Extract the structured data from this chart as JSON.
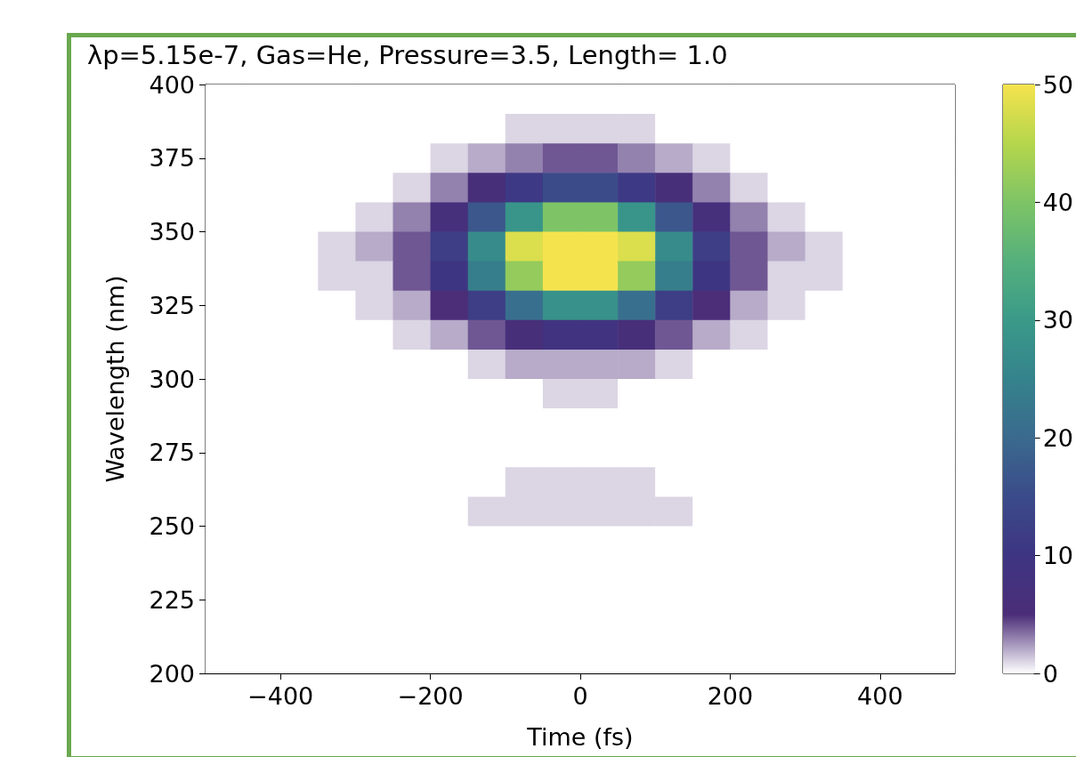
{
  "chart_data": {
    "type": "heatmap",
    "title": "λp=5.15e-7, Gas=He, Pressure=3.5, Length= 1.0",
    "xlabel": "Time (fs)",
    "ylabel": "Wavelength (nm)",
    "x": [
      -475,
      -425,
      -375,
      -325,
      -275,
      -225,
      -175,
      -125,
      -75,
      -25,
      25,
      75,
      125,
      175,
      225,
      275,
      325,
      375,
      425,
      475
    ],
    "y": [
      395,
      385,
      375,
      365,
      355,
      345,
      335,
      325,
      315,
      305,
      295,
      285,
      275,
      265,
      255,
      245,
      235,
      225,
      215,
      205
    ],
    "cells": [
      [
        0,
        0,
        0,
        0,
        0,
        0,
        0,
        0,
        0,
        0,
        0,
        0,
        0,
        0,
        0,
        0,
        0,
        0,
        0,
        0
      ],
      [
        0,
        0,
        0,
        0,
        0,
        0,
        0,
        0,
        1,
        1,
        1,
        1,
        0,
        0,
        0,
        0,
        0,
        0,
        0,
        0
      ],
      [
        0,
        0,
        0,
        0,
        0,
        0,
        1,
        2,
        3,
        4,
        4,
        3,
        2,
        1,
        0,
        0,
        0,
        0,
        0,
        0
      ],
      [
        0,
        0,
        0,
        0,
        0,
        1,
        3,
        6,
        11,
        15,
        15,
        11,
        6,
        3,
        1,
        0,
        0,
        0,
        0,
        0
      ],
      [
        0,
        0,
        0,
        0,
        1,
        3,
        7,
        17,
        29,
        40,
        40,
        29,
        17,
        7,
        3,
        1,
        0,
        0,
        0,
        0
      ],
      [
        0,
        0,
        0,
        1,
        2,
        4,
        12,
        27,
        48,
        50,
        50,
        48,
        27,
        12,
        4,
        2,
        1,
        0,
        0,
        0
      ],
      [
        0,
        0,
        0,
        1,
        1,
        4,
        10,
        24,
        42,
        50,
        50,
        42,
        24,
        10,
        4,
        1,
        1,
        0,
        0,
        0
      ],
      [
        0,
        0,
        0,
        0,
        1,
        2,
        5,
        12,
        21,
        28,
        28,
        21,
        12,
        5,
        2,
        1,
        0,
        0,
        0,
        0
      ],
      [
        0,
        0,
        0,
        0,
        0,
        1,
        2,
        4,
        6,
        9,
        9,
        6,
        4,
        2,
        1,
        0,
        0,
        0,
        0,
        0
      ],
      [
        0,
        0,
        0,
        0,
        0,
        0,
        0,
        1,
        2,
        2,
        2,
        2,
        1,
        0,
        0,
        0,
        0,
        0,
        0,
        0
      ],
      [
        0,
        0,
        0,
        0,
        0,
        0,
        0,
        0,
        0,
        1,
        1,
        0,
        0,
        0,
        0,
        0,
        0,
        0,
        0,
        0
      ],
      [
        0,
        0,
        0,
        0,
        0,
        0,
        0,
        0,
        0,
        0,
        0,
        0,
        0,
        0,
        0,
        0,
        0,
        0,
        0,
        0
      ],
      [
        0,
        0,
        0,
        0,
        0,
        0,
        0,
        0,
        0,
        0,
        0,
        0,
        0,
        0,
        0,
        0,
        0,
        0,
        0,
        0
      ],
      [
        0,
        0,
        0,
        0,
        0,
        0,
        0,
        0,
        1,
        1,
        1,
        1,
        0,
        0,
        0,
        0,
        0,
        0,
        0,
        0
      ],
      [
        0,
        0,
        0,
        0,
        0,
        0,
        0,
        1,
        1,
        1,
        1,
        1,
        1,
        0,
        0,
        0,
        0,
        0,
        0,
        0
      ],
      [
        0,
        0,
        0,
        0,
        0,
        0,
        0,
        0,
        0,
        0,
        0,
        0,
        0,
        0,
        0,
        0,
        0,
        0,
        0,
        0
      ],
      [
        0,
        0,
        0,
        0,
        0,
        0,
        0,
        0,
        0,
        0,
        0,
        0,
        0,
        0,
        0,
        0,
        0,
        0,
        0,
        0
      ],
      [
        0,
        0,
        0,
        0,
        0,
        0,
        0,
        0,
        0,
        0,
        0,
        0,
        0,
        0,
        0,
        0,
        0,
        0,
        0,
        0
      ],
      [
        0,
        0,
        0,
        0,
        0,
        0,
        0,
        0,
        0,
        0,
        0,
        0,
        0,
        0,
        0,
        0,
        0,
        0,
        0,
        0
      ],
      [
        0,
        0,
        0,
        0,
        0,
        0,
        0,
        0,
        0,
        0,
        0,
        0,
        0,
        0,
        0,
        0,
        0,
        0,
        0,
        0
      ]
    ],
    "xlim": [
      -500,
      500
    ],
    "xticks": [
      {
        "value": -400,
        "label": "−400"
      },
      {
        "value": -200,
        "label": "−200"
      },
      0,
      200,
      400
    ],
    "ylim": [
      200,
      400
    ],
    "yticks": [
      200,
      225,
      250,
      275,
      300,
      325,
      350,
      375,
      400
    ],
    "clim": [
      0,
      50
    ],
    "cticks": [
      0,
      10,
      20,
      30,
      40,
      50
    ],
    "grid": false
  }
}
